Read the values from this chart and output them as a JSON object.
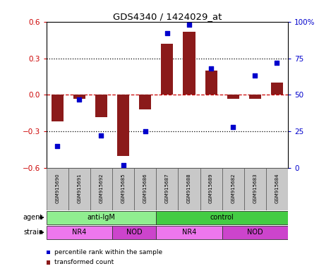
{
  "title": "GDS4340 / 1424029_at",
  "samples": [
    "GSM915690",
    "GSM915691",
    "GSM915692",
    "GSM915685",
    "GSM915686",
    "GSM915687",
    "GSM915688",
    "GSM915689",
    "GSM915682",
    "GSM915683",
    "GSM915684"
  ],
  "bar_values": [
    -0.22,
    -0.03,
    -0.18,
    -0.5,
    -0.12,
    0.42,
    0.52,
    0.2,
    -0.03,
    -0.03,
    0.1
  ],
  "scatter_values": [
    15,
    47,
    22,
    2,
    25,
    92,
    98,
    68,
    28,
    63,
    72
  ],
  "ylim_left": [
    -0.6,
    0.6
  ],
  "ylim_right": [
    0,
    100
  ],
  "yticks_left": [
    -0.6,
    -0.3,
    0.0,
    0.3,
    0.6
  ],
  "yticks_right": [
    0,
    25,
    50,
    75,
    100
  ],
  "ytick_labels_right": [
    "0",
    "25",
    "50",
    "75",
    "100%"
  ],
  "bar_color": "#8B1A1A",
  "scatter_color": "#0000CC",
  "hline_color": "#CC0000",
  "dotted_line_color": "#000000",
  "agent_groups": [
    {
      "label": "anti-IgM",
      "start": 0,
      "end": 5,
      "color": "#90EE90"
    },
    {
      "label": "control",
      "start": 5,
      "end": 11,
      "color": "#44CC44"
    }
  ],
  "strain_groups": [
    {
      "label": "NR4",
      "start": 0,
      "end": 3,
      "color": "#EE77EE"
    },
    {
      "label": "NOD",
      "start": 3,
      "end": 5,
      "color": "#CC44CC"
    },
    {
      "label": "NR4",
      "start": 5,
      "end": 8,
      "color": "#EE77EE"
    },
    {
      "label": "NOD",
      "start": 8,
      "end": 11,
      "color": "#CC44CC"
    }
  ],
  "legend_items": [
    {
      "label": "transformed count",
      "color": "#8B1A1A"
    },
    {
      "label": "percentile rank within the sample",
      "color": "#0000CC"
    }
  ],
  "ylabel_left_color": "#CC0000",
  "ylabel_right_color": "#0000CC",
  "sample_box_color": "#C8C8C8"
}
